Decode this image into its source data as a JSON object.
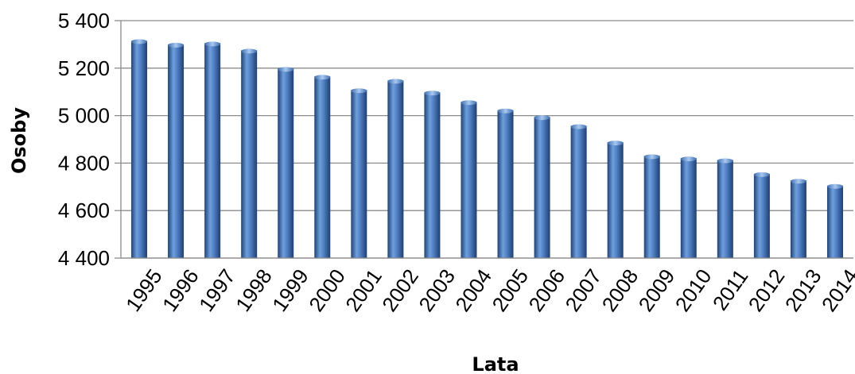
{
  "chart_data": {
    "type": "bar",
    "title": "",
    "xlabel": "Lata",
    "ylabel": "Osoby",
    "categories": [
      "1995",
      "1996",
      "1997",
      "1998",
      "1999",
      "2000",
      "2001",
      "2002",
      "2003",
      "2004",
      "2005",
      "2006",
      "2007",
      "2008",
      "2009",
      "2010",
      "2011",
      "2012",
      "2013",
      "2014"
    ],
    "values": [
      5315,
      5300,
      5305,
      5275,
      5198,
      5165,
      5108,
      5148,
      5098,
      5058,
      5023,
      4995,
      4957,
      4888,
      4830,
      4821,
      4813,
      4755,
      4727,
      4705
    ],
    "ylim": [
      4400,
      5400
    ],
    "yticks": [
      4400,
      4600,
      4800,
      5000,
      5200,
      5400
    ],
    "ytick_labels": [
      "4 400",
      "4 600",
      "4 800",
      "5 000",
      "5 200",
      "5 400"
    ],
    "grid": true,
    "legend": "none",
    "bar_color": "#3f6fb5"
  }
}
